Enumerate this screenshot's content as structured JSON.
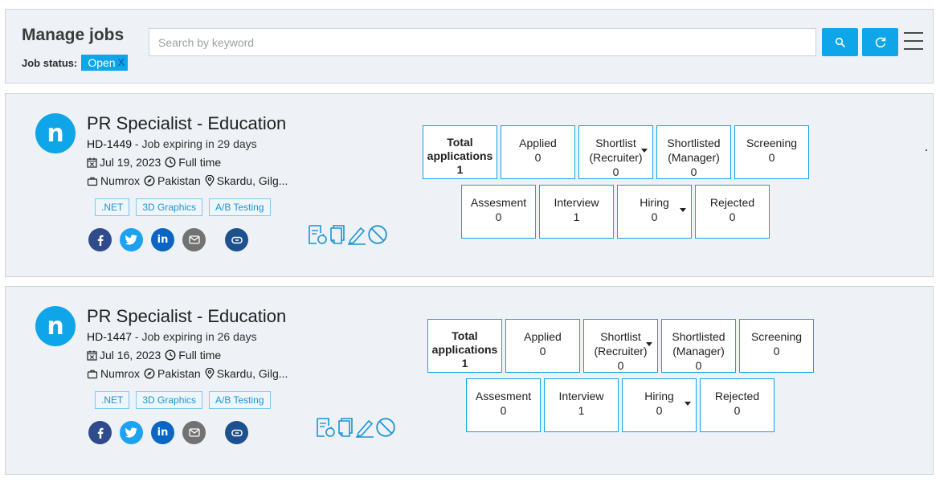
{
  "header": {
    "title": "Manage jobs",
    "status_label": "Job status:",
    "status_value": "Open",
    "status_remove": "X",
    "search_placeholder": "Search by keyword"
  },
  "jobs": [
    {
      "logo_letter": "n",
      "title": "PR Specialist - Education",
      "code": "HD-1449",
      "expiry": " - Job expiring in 29 days",
      "date": "Jul 19, 2023",
      "type": "Full time",
      "company": "Numrox",
      "country": "Pakistan",
      "location": "Skardu, Gilg...",
      "tags": [
        ".NET",
        "3D Graphics",
        "A/B Testing"
      ],
      "stats": {
        "total_label": "Total applications",
        "total": "1",
        "applied_label": "Applied",
        "applied": "0",
        "shortlist_recruiter_label1": "Shortlist",
        "shortlist_recruiter_label2": "(Recruiter)",
        "shortlist_recruiter": "0",
        "shortlisted_manager_label1": "Shortlisted",
        "shortlisted_manager_label2": "(Manager)",
        "shortlisted_manager": "0",
        "screening_label": "Screening",
        "screening": "0",
        "assesment_label": "Assesment",
        "assesment": "0",
        "interview_label": "Interview",
        "interview": "1",
        "hiring_label": "Hiring",
        "hiring": "0",
        "rejected_label": "Rejected",
        "rejected": "0"
      }
    },
    {
      "logo_letter": "n",
      "title": "PR Specialist - Education",
      "code": "HD-1447",
      "expiry": " - Job expiring in 26 days",
      "date": "Jul 16, 2023",
      "type": "Full time",
      "company": "Numrox",
      "country": "Pakistan",
      "location": "Skardu, Gilg...",
      "tags": [
        ".NET",
        "3D Graphics",
        "A/B Testing"
      ],
      "stats": {
        "total_label": "Total applications",
        "total": "1",
        "applied_label": "Applied",
        "applied": "0",
        "shortlist_recruiter_label1": "Shortlist",
        "shortlist_recruiter_label2": "(Recruiter)",
        "shortlist_recruiter": "0",
        "shortlisted_manager_label1": "Shortlisted",
        "shortlisted_manager_label2": "(Manager)",
        "shortlisted_manager": "0",
        "screening_label": "Screening",
        "screening": "0",
        "assesment_label": "Assesment",
        "assesment": "0",
        "interview_label": "Interview",
        "interview": "1",
        "hiring_label": "Hiring",
        "hiring": "0",
        "rejected_label": "Rejected",
        "rejected": "0"
      }
    }
  ],
  "colors": {
    "accent": "#0ea5e9",
    "panel_bg": "#eef1f5",
    "facebook": "#2f4b8c",
    "twitter": "#1da1f2",
    "linkedin": "#0a66c2"
  },
  "icons": {
    "search": "search-icon",
    "refresh": "refresh-icon",
    "menu": "hamburger-menu-icon",
    "calendar": "calendar-icon",
    "clock": "clock-icon",
    "briefcase": "briefcase-icon",
    "compass": "compass-icon",
    "pin": "location-pin-icon"
  }
}
